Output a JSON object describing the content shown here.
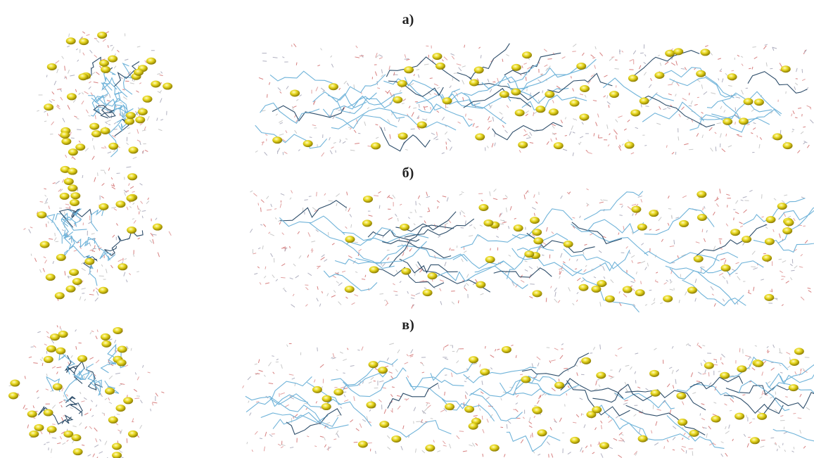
{
  "panels": [
    {
      "label": "а)"
    },
    {
      "label": "б)"
    },
    {
      "label": "в)"
    }
  ]
}
